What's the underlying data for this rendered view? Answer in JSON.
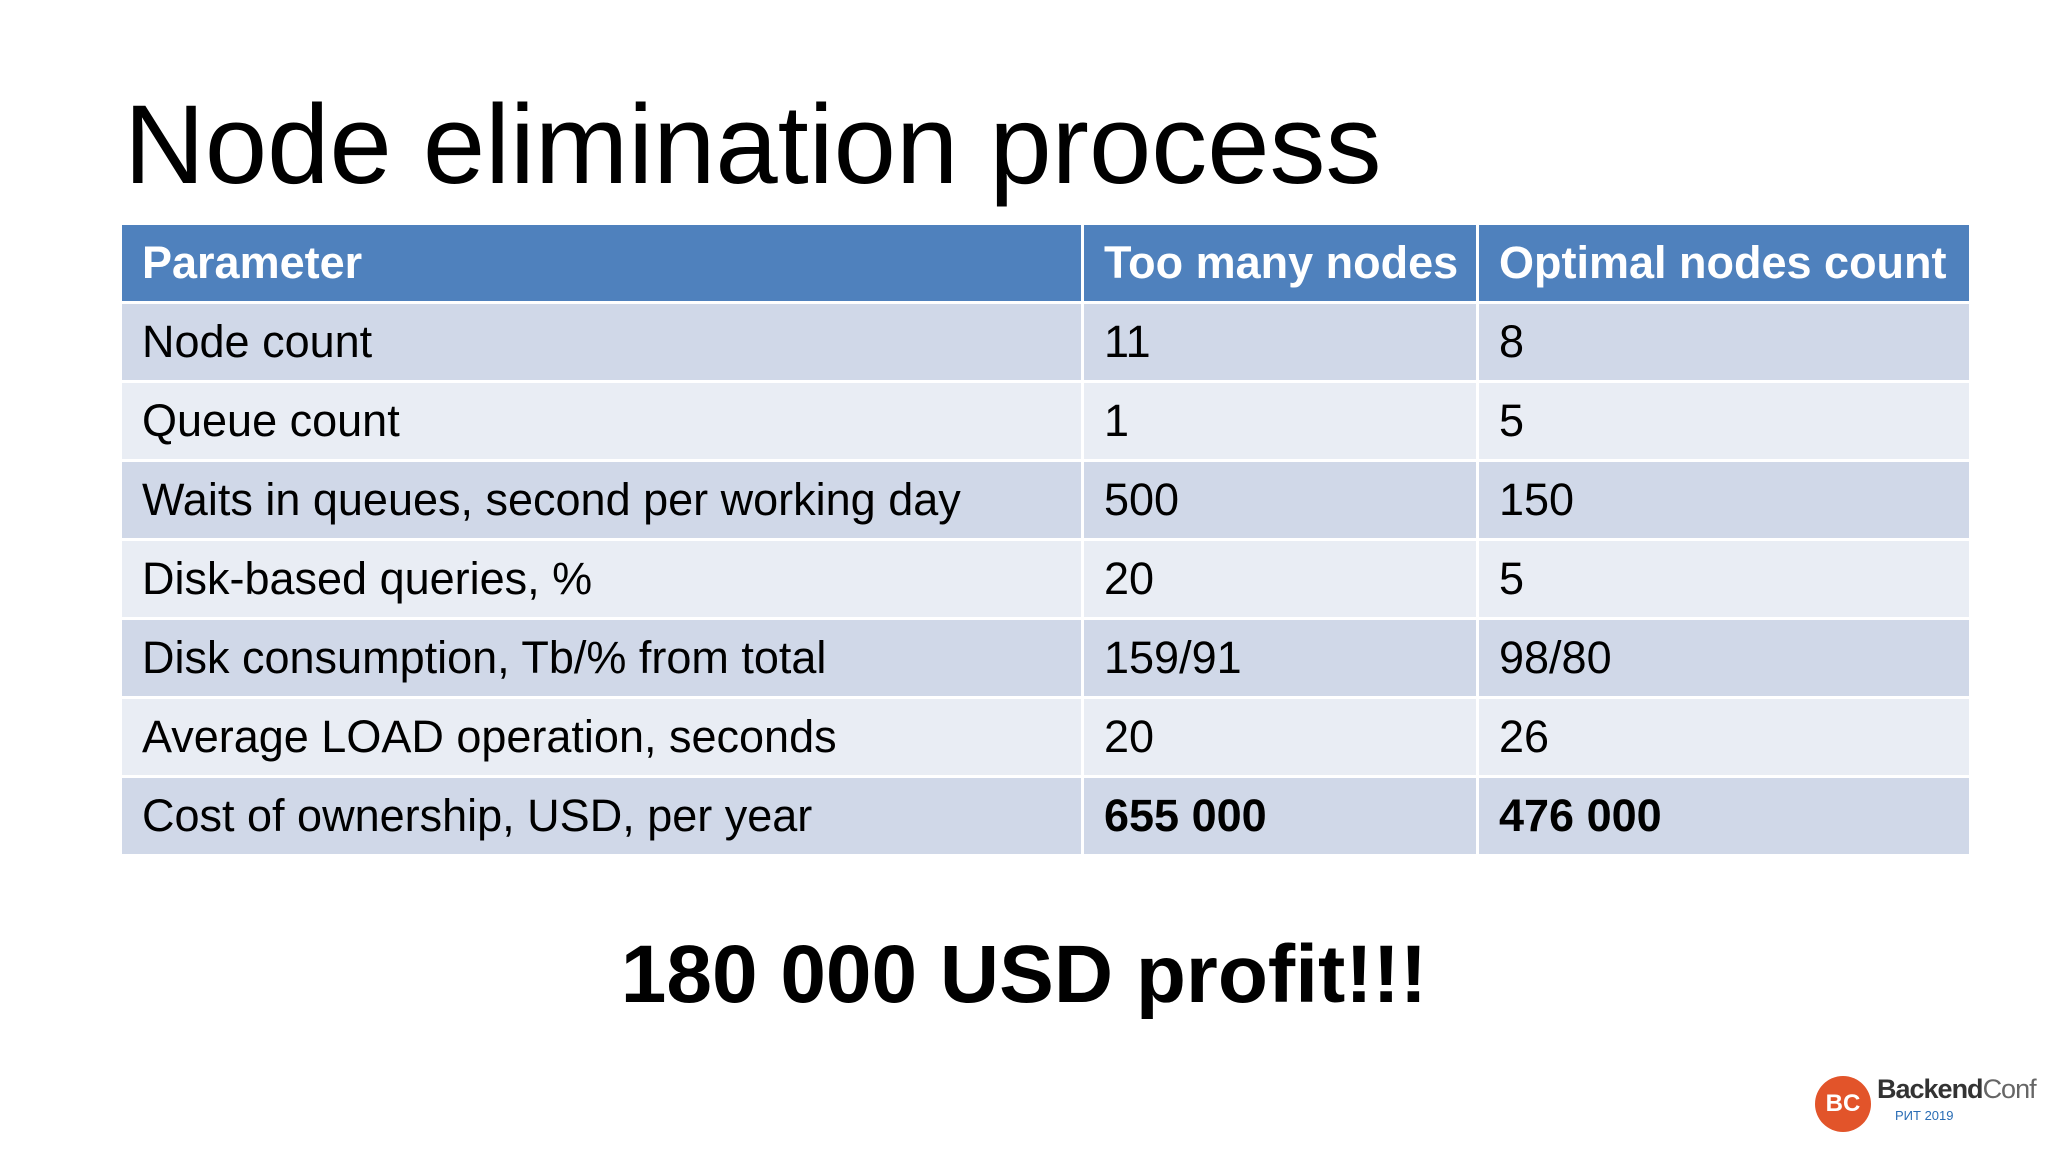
{
  "title": "Node elimination process",
  "table": {
    "header": [
      "Parameter",
      "Too many nodes",
      "Optimal nodes count"
    ],
    "rows": [
      [
        "Node count",
        "11",
        "8"
      ],
      [
        "Queue count",
        "1",
        "5"
      ],
      [
        "Waits in queues, second per working day",
        "500",
        "150"
      ],
      [
        "Disk-based queries, %",
        "20",
        "5"
      ],
      [
        "Disk consumption, Tb/% from total",
        "159/91",
        "98/80"
      ],
      [
        "Average LOAD operation, seconds",
        "20",
        "26"
      ],
      [
        "Cost of ownership, USD, per year",
        "655 000",
        "476 000"
      ]
    ]
  },
  "footer": "180 000 USD profit!!!",
  "logo": {
    "badge": "BC",
    "name_bold": "Backend",
    "name_light": "Conf",
    "subtitle": "РИТ 2019"
  }
}
